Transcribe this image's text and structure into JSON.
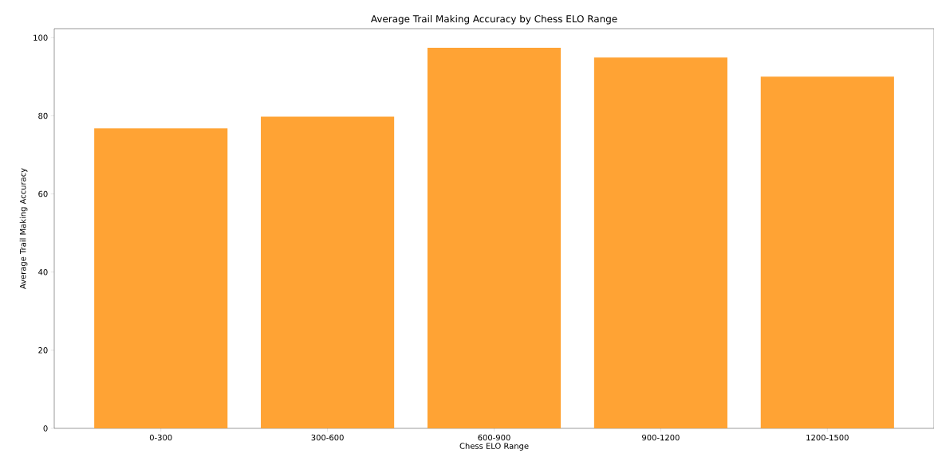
{
  "chart_data": {
    "type": "bar",
    "title": "Average Trail Making Accuracy by Chess ELO Range",
    "xlabel": "Chess ELO Range",
    "ylabel": "Average Trail Making Accuracy",
    "categories": [
      "0-300",
      "300-600",
      "600-900",
      "900-1200",
      "1200-1500"
    ],
    "values": [
      76.8,
      79.8,
      97.4,
      94.9,
      90.0
    ],
    "color": "#ffa334",
    "ylim": [
      0,
      102.3
    ],
    "yticks": [
      0,
      20,
      40,
      60,
      80,
      100
    ],
    "grid": false
  }
}
